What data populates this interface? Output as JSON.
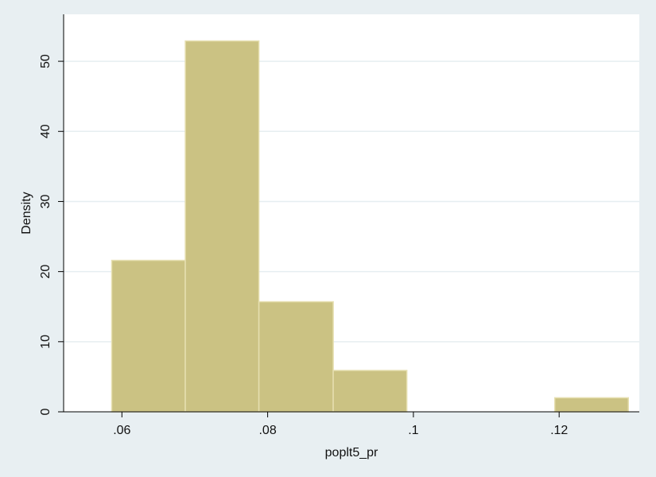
{
  "chart_data": {
    "type": "histogram",
    "xlabel": "poplt5_pr",
    "ylabel": "Density",
    "xlim": [
      0.052,
      0.131
    ],
    "ylim": [
      0,
      56.7
    ],
    "xticks": [
      0.06,
      0.08,
      0.1,
      0.12
    ],
    "xtick_labels": [
      ".06",
      ".08",
      ".1",
      ".12"
    ],
    "yticks": [
      0,
      10,
      20,
      30,
      40,
      50
    ],
    "ytick_labels": [
      "0",
      "10",
      "20",
      "30",
      "40",
      "50"
    ],
    "grid": true,
    "bins": [
      {
        "x0": 0.0586,
        "x1": 0.0687,
        "density": 21.6
      },
      {
        "x0": 0.0687,
        "x1": 0.0788,
        "density": 52.9
      },
      {
        "x0": 0.0788,
        "x1": 0.089,
        "density": 15.7
      },
      {
        "x0": 0.089,
        "x1": 0.0991,
        "density": 5.9
      },
      {
        "x0": 0.0991,
        "x1": 0.1092,
        "density": 0
      },
      {
        "x0": 0.1092,
        "x1": 0.1194,
        "density": 0
      },
      {
        "x0": 0.1194,
        "x1": 0.1295,
        "density": 2.0
      }
    ],
    "colors": {
      "bar_fill": "#cbc283",
      "bar_edge": "#e6dfb0",
      "plot_bg": "#ffffff",
      "outer_bg": "#e8eff2",
      "grid": "#e6eef1",
      "axis": "#000000"
    }
  }
}
